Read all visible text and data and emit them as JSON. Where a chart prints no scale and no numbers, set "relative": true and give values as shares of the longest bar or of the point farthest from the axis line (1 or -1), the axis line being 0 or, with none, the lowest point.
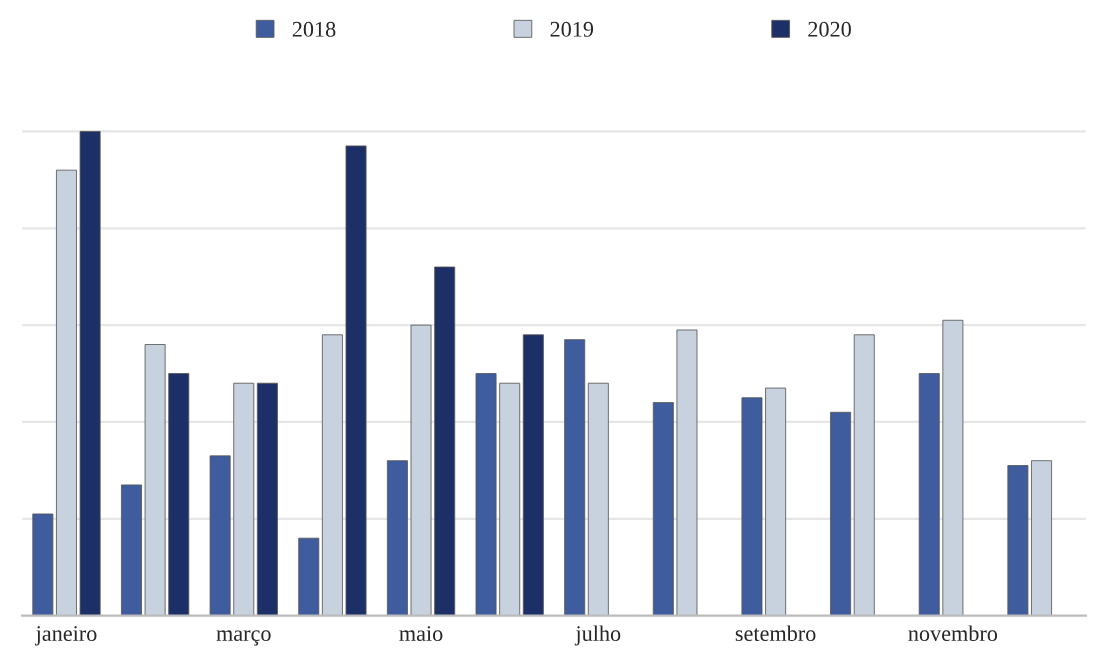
{
  "chart_data": {
    "type": "bar",
    "relative": true,
    "categories": [
      "janeiro",
      null,
      "março",
      null,
      "maio",
      null,
      "julho",
      null,
      "setembro",
      null,
      "novembro",
      null
    ],
    "series": [
      {
        "name": "2018",
        "color": "#3f5c9f",
        "values": [
          0.21,
          0.27,
          0.33,
          0.16,
          0.32,
          0.5,
          0.57,
          0.44,
          0.45,
          0.42,
          0.5,
          0.31
        ]
      },
      {
        "name": "2019",
        "color": "#c8d2df",
        "values": [
          0.92,
          0.56,
          0.48,
          0.58,
          0.6,
          0.48,
          0.48,
          0.59,
          0.47,
          0.58,
          0.61,
          0.32
        ]
      },
      {
        "name": "2020",
        "color": "#1c2f66",
        "values": [
          1,
          0.5,
          0.48,
          0.97,
          0.72,
          0.58,
          null,
          null,
          null,
          null,
          null,
          null
        ]
      }
    ],
    "grid": "y",
    "legend": "top"
  }
}
